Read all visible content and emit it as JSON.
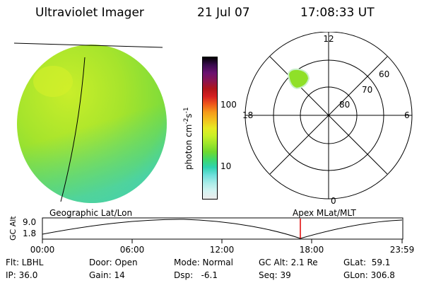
{
  "header": {
    "instrument": "Ultraviolet Imager",
    "date": "21 Jul 07",
    "time": "17:08:33 UT"
  },
  "image_panel": {
    "label": "Geographic Lat/Lon"
  },
  "colorbar": {
    "label": "photon cm",
    "exp1": "-2",
    "mid": "s",
    "exp2": "-1",
    "tick_high": "100",
    "tick_low": "10",
    "colors": [
      "#000000",
      "#3a0a4f",
      "#6b1170",
      "#8a1450",
      "#b0151a",
      "#d62020",
      "#ef5a1a",
      "#f59b1a",
      "#f2c21e",
      "#e7ea23",
      "#c8f026",
      "#9ee62a",
      "#6fd92e",
      "#3fd86a",
      "#2ed3b0",
      "#6fe0dc",
      "#a9ece8",
      "#d4f4f2",
      "#ececec"
    ]
  },
  "polar": {
    "label": "Apex MLat/MLT",
    "mlt_top": "12",
    "mlt_left": "18",
    "mlt_right": "6",
    "mlt_bottom": "0",
    "lat_60": "60",
    "lat_70": "70",
    "lat_80": "80"
  },
  "altitude_plot": {
    "ylabel": "GC Alt",
    "ytick_high": "9.0",
    "ytick_low": "1.8",
    "xticks": [
      "00:00",
      "06:00",
      "12:00",
      "18:00",
      "23:59"
    ],
    "marker_color": "#e00000"
  },
  "status": {
    "row1": {
      "flt": "Flt: LBHL",
      "door": "Door: Open",
      "mode": "Mode: Normal",
      "gcalt": "GC Alt: 2.1 Re",
      "glat": "GLat:  59.1"
    },
    "row2": {
      "ip": "IP: 36.0",
      "gain": "Gain: 14",
      "dsp": "Dsp:   -6.1",
      "seq": "Seq: 39",
      "glon": "GLon: 306.8"
    }
  }
}
